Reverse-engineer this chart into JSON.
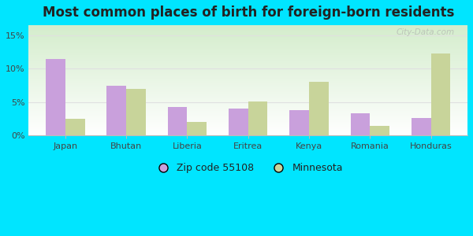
{
  "title": "Most common places of birth for foreign-born residents",
  "categories": [
    "Japan",
    "Bhutan",
    "Liberia",
    "Eritrea",
    "Kenya",
    "Romania",
    "Honduras"
  ],
  "zip_values": [
    11.5,
    7.5,
    4.3,
    4.0,
    3.8,
    3.3,
    2.6
  ],
  "mn_values": [
    2.5,
    7.0,
    2.0,
    5.1,
    8.0,
    1.4,
    12.3
  ],
  "zip_color": "#c9a0dc",
  "mn_color": "#c8d49a",
  "plot_bg_top": "#ffffff",
  "plot_bg_bottom": "#d4edcc",
  "outer_background": "#00e5ff",
  "title_fontsize": 12,
  "title_color": "#222222",
  "ylabel_ticks": [
    0,
    5,
    10,
    15
  ],
  "ylim": [
    0,
    16.5
  ],
  "legend_zip_label": "Zip code 55108",
  "legend_mn_label": "Minnesota",
  "bar_width": 0.32,
  "watermark": "City-Data.com",
  "tick_label_color": "#444444",
  "grid_color": "#e0e0e0"
}
